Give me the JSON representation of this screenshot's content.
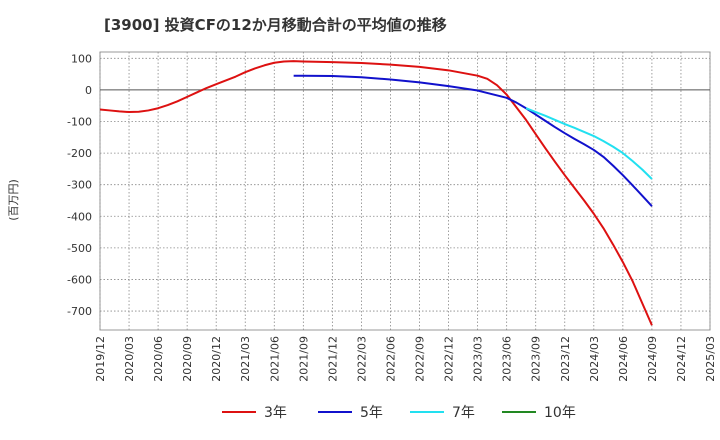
{
  "chart_data": {
    "type": "line",
    "title": "[3900]  投資CFの12か月移動合計の平均値の推移",
    "ylabel": "(百万円)",
    "xlabel": "",
    "ylim": [
      -760,
      120
    ],
    "yticks": [
      100,
      0,
      -100,
      -200,
      -300,
      -400,
      -500,
      -600,
      -700
    ],
    "xticks": [
      "2019/12",
      "2020/03",
      "2020/06",
      "2020/09",
      "2020/12",
      "2021/03",
      "2021/06",
      "2021/09",
      "2021/12",
      "2022/03",
      "2022/06",
      "2022/09",
      "2022/12",
      "2023/03",
      "2023/06",
      "2023/09",
      "2023/12",
      "2024/03",
      "2024/06",
      "2024/09",
      "2024/12",
      "2025/03"
    ],
    "grid": true,
    "legend_position": "bottom",
    "series": [
      {
        "name": "3年",
        "color": "#dd1111",
        "points": [
          [
            "2019/12",
            -62
          ],
          [
            "2020/01",
            -65
          ],
          [
            "2020/02",
            -68
          ],
          [
            "2020/03",
            -70
          ],
          [
            "2020/04",
            -69
          ],
          [
            "2020/05",
            -65
          ],
          [
            "2020/06",
            -58
          ],
          [
            "2020/07",
            -48
          ],
          [
            "2020/08",
            -36
          ],
          [
            "2020/09",
            -22
          ],
          [
            "2020/10",
            -8
          ],
          [
            "2020/11",
            6
          ],
          [
            "2020/12",
            18
          ],
          [
            "2021/01",
            30
          ],
          [
            "2021/02",
            42
          ],
          [
            "2021/03",
            56
          ],
          [
            "2021/04",
            68
          ],
          [
            "2021/05",
            78
          ],
          [
            "2021/06",
            86
          ],
          [
            "2021/07",
            90
          ],
          [
            "2021/08",
            91
          ],
          [
            "2021/09",
            90
          ],
          [
            "2021/12",
            88
          ],
          [
            "2022/03",
            85
          ],
          [
            "2022/06",
            80
          ],
          [
            "2022/09",
            73
          ],
          [
            "2022/12",
            62
          ],
          [
            "2023/03",
            45
          ],
          [
            "2023/04",
            35
          ],
          [
            "2023/05",
            15
          ],
          [
            "2023/06",
            -15
          ],
          [
            "2023/07",
            -55
          ],
          [
            "2023/08",
            -95
          ],
          [
            "2023/09",
            -140
          ],
          [
            "2023/10",
            -185
          ],
          [
            "2023/11",
            -228
          ],
          [
            "2023/12",
            -270
          ],
          [
            "2024/01",
            -310
          ],
          [
            "2024/02",
            -350
          ],
          [
            "2024/03",
            -392
          ],
          [
            "2024/04",
            -438
          ],
          [
            "2024/05",
            -490
          ],
          [
            "2024/06",
            -545
          ],
          [
            "2024/07",
            -605
          ],
          [
            "2024/08",
            -675
          ],
          [
            "2024/09",
            -745
          ]
        ]
      },
      {
        "name": "5年",
        "color": "#1111cc",
        "points": [
          [
            "2021/08",
            45
          ],
          [
            "2021/09",
            45
          ],
          [
            "2021/12",
            44
          ],
          [
            "2022/03",
            40
          ],
          [
            "2022/06",
            33
          ],
          [
            "2022/09",
            24
          ],
          [
            "2022/12",
            12
          ],
          [
            "2023/03",
            -2
          ],
          [
            "2023/06",
            -25
          ],
          [
            "2023/07",
            -40
          ],
          [
            "2023/08",
            -58
          ],
          [
            "2023/09",
            -78
          ],
          [
            "2023/10",
            -98
          ],
          [
            "2023/11",
            -118
          ],
          [
            "2023/12",
            -137
          ],
          [
            "2024/01",
            -155
          ],
          [
            "2024/02",
            -172
          ],
          [
            "2024/03",
            -190
          ],
          [
            "2024/04",
            -212
          ],
          [
            "2024/05",
            -240
          ],
          [
            "2024/06",
            -270
          ],
          [
            "2024/07",
            -302
          ],
          [
            "2024/08",
            -335
          ],
          [
            "2024/09",
            -368
          ]
        ]
      },
      {
        "name": "7年",
        "color": "#22e0f0",
        "points": [
          [
            "2023/08",
            -58
          ],
          [
            "2023/09",
            -70
          ],
          [
            "2023/10",
            -82
          ],
          [
            "2023/11",
            -95
          ],
          [
            "2023/12",
            -108
          ],
          [
            "2024/01",
            -120
          ],
          [
            "2024/02",
            -133
          ],
          [
            "2024/03",
            -146
          ],
          [
            "2024/04",
            -162
          ],
          [
            "2024/05",
            -180
          ],
          [
            "2024/06",
            -200
          ],
          [
            "2024/07",
            -225
          ],
          [
            "2024/08",
            -252
          ],
          [
            "2024/09",
            -282
          ]
        ]
      },
      {
        "name": "10年",
        "color": "#228822",
        "points": []
      }
    ]
  }
}
